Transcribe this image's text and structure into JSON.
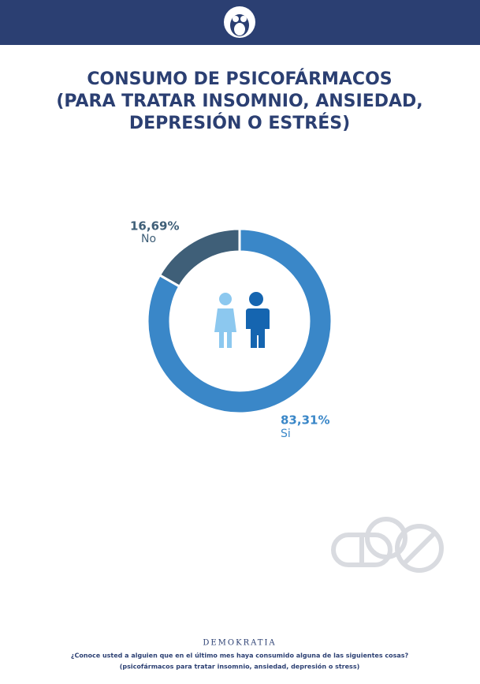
{
  "chart_data": {
    "type": "donut",
    "title": [
      "CONSUMO DE PSICOFÁRMACOS",
      "(PARA TRATAR INSOMNIO, ANSIEDAD,",
      "DEPRESIÓN O ESTRÉS)"
    ],
    "categories": [
      "Si",
      "No"
    ],
    "values": [
      83.31,
      16.69
    ],
    "value_labels": [
      "83,31%",
      "16,69%"
    ],
    "colors": [
      "#3a87c8",
      "#3f5f78"
    ]
  },
  "footer": {
    "brand": "DEMOKRATIA",
    "question": "¿Conoce usted a alguien que en el último mes haya consumido alguna de las siguientes cosas?",
    "note": "(psicofármacos para tratar insomnio, ansiedad, depresión o stress)"
  }
}
